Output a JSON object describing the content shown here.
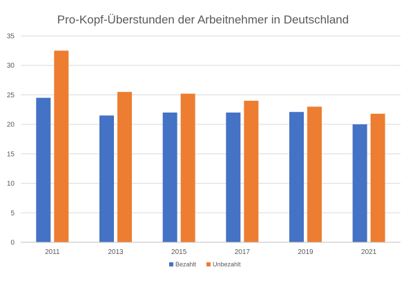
{
  "colors": {
    "bezahlt": "#4472c4",
    "unbezahlt": "#ed7d31",
    "grid": "#d9d9d9",
    "text": "#595959"
  },
  "chart_data": {
    "type": "bar",
    "title": "Pro-Kopf-Überstunden der Arbeitnehmer in Deutschland",
    "xlabel": "",
    "ylabel": "",
    "categories": [
      "2011",
      "2013",
      "2015",
      "2017",
      "2019",
      "2021"
    ],
    "series": [
      {
        "name": "Bezahlt",
        "values": [
          24.5,
          21.5,
          22.0,
          22.0,
          22.1,
          20.0
        ]
      },
      {
        "name": "Unbezahlt",
        "values": [
          32.5,
          25.5,
          25.2,
          24.0,
          23.0,
          21.8
        ]
      }
    ],
    "ylim": [
      0,
      35
    ],
    "yticks": [
      "0",
      "5",
      "10",
      "15",
      "20",
      "25",
      "30",
      "35"
    ],
    "grid": true,
    "legend_position": "bottom"
  }
}
